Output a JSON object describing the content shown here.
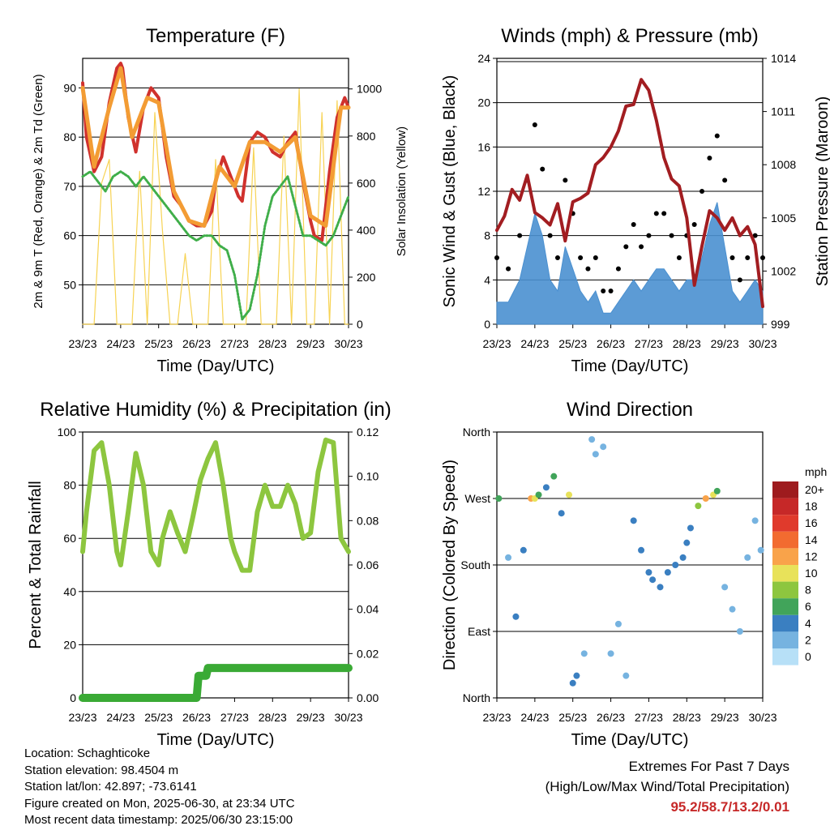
{
  "xticks": [
    "23/23",
    "24/23",
    "25/23",
    "26/23",
    "27/23",
    "28/23",
    "29/23",
    "30/23"
  ],
  "chart_data": [
    {
      "type": "line",
      "title": "Temperature (F)",
      "xlabel": "Time (Day/UTC)",
      "ylabel": "2m & 9m T (Red, Orange) & 2m Td (Green)",
      "y2label": "Solar Insolation (Yellow)",
      "ylim": [
        42,
        96
      ],
      "y2lim": [
        0,
        1130
      ],
      "yticks": [
        50,
        60,
        70,
        80,
        90
      ],
      "y2ticks": [
        0,
        200,
        400,
        600,
        800,
        1000
      ],
      "x_days": [
        0,
        7
      ],
      "series": [
        {
          "kind": "temp2m",
          "color": "#d0312d",
          "x": [
            0,
            0.1,
            0.3,
            0.5,
            0.7,
            0.9,
            1.0,
            1.05,
            1.2,
            1.4,
            1.6,
            1.8,
            2.0,
            2.2,
            2.4,
            2.6,
            2.8,
            3.0,
            3.2,
            3.4,
            3.5,
            3.7,
            3.9,
            4.1,
            4.2,
            4.4,
            4.6,
            4.8,
            5.0,
            5.2,
            5.4,
            5.6,
            5.8,
            6.0,
            6.1,
            6.3,
            6.5,
            6.7,
            6.9,
            7.0
          ],
          "values": [
            91,
            80,
            73,
            76,
            87,
            94,
            95,
            94,
            84,
            77,
            86,
            90,
            88,
            76,
            68,
            66,
            63,
            62,
            62,
            65,
            71,
            76,
            72,
            68,
            67,
            79,
            81,
            80,
            77,
            76,
            79,
            81,
            71,
            63,
            60,
            59,
            73,
            84,
            88,
            86
          ]
        },
        {
          "kind": "temp9m",
          "color": "#f39c34",
          "x": [
            0,
            0.3,
            0.7,
            1.0,
            1.3,
            1.7,
            2.0,
            2.4,
            2.8,
            3.2,
            3.6,
            4.0,
            4.4,
            4.8,
            5.2,
            5.6,
            6.0,
            6.4,
            6.8,
            7.0
          ],
          "values": [
            90,
            74,
            86,
            94,
            80,
            88,
            87,
            69,
            63,
            62,
            74,
            70,
            79,
            79,
            77,
            80,
            64,
            62,
            86,
            86
          ]
        },
        {
          "kind": "dewpoint",
          "color": "#3fae49",
          "x": [
            0,
            0.2,
            0.4,
            0.6,
            0.8,
            1.0,
            1.2,
            1.4,
            1.6,
            1.8,
            2.0,
            2.2,
            2.4,
            2.6,
            2.8,
            3.0,
            3.2,
            3.4,
            3.6,
            3.8,
            4.0,
            4.2,
            4.4,
            4.6,
            4.8,
            5.0,
            5.2,
            5.4,
            5.6,
            5.8,
            6.0,
            6.2,
            6.4,
            6.6,
            6.8,
            7.0
          ],
          "values": [
            72,
            73,
            71,
            69,
            72,
            73,
            72,
            70,
            72,
            70,
            68,
            66,
            64,
            62,
            60,
            59,
            60,
            60,
            58,
            57,
            52,
            43,
            45,
            52,
            62,
            68,
            70,
            72,
            66,
            60,
            60,
            59,
            58,
            60,
            64,
            68
          ]
        },
        {
          "kind": "solar",
          "color": "#f7d354",
          "x": [
            0,
            0.3,
            0.5,
            0.7,
            0.9,
            1.1,
            1.3,
            1.5,
            1.7,
            1.9,
            2.1,
            2.3,
            2.5,
            2.7,
            2.9,
            3.1,
            3.3,
            3.5,
            3.7,
            3.9,
            4.1,
            4.3,
            4.5,
            4.7,
            4.9,
            5.1,
            5.3,
            5.5,
            5.7,
            5.9,
            6.1,
            6.3,
            6.5,
            6.7,
            6.9,
            7.0
          ],
          "values": [
            0,
            0,
            600,
            700,
            0,
            0,
            0,
            650,
            0,
            900,
            400,
            0,
            0,
            300,
            0,
            0,
            0,
            700,
            0,
            0,
            0,
            0,
            750,
            0,
            0,
            0,
            800,
            0,
            1000,
            0,
            0,
            900,
            0,
            950,
            0,
            0
          ]
        }
      ]
    },
    {
      "type": "line",
      "title": "Winds (mph) & Pressure (mb)",
      "xlabel": "Time (Day/UTC)",
      "ylabel": "Sonic Wind & Gust (Blue, Black)",
      "y2label": "Station Pressure (Maroon)",
      "ylim": [
        0,
        24
      ],
      "y2lim": [
        999,
        1014
      ],
      "yticks": [
        0,
        4,
        8,
        12,
        16,
        20,
        24
      ],
      "y2ticks": [
        999,
        1002,
        1005,
        1008,
        1011,
        1014
      ],
      "x_days": [
        0,
        7
      ],
      "series": [
        {
          "kind": "wind",
          "color": "#4a90d0",
          "x": [
            0,
            0.3,
            0.6,
            0.8,
            1.0,
            1.2,
            1.4,
            1.6,
            1.8,
            2.0,
            2.2,
            2.4,
            2.6,
            2.8,
            3.0,
            3.2,
            3.4,
            3.6,
            3.8,
            4.0,
            4.2,
            4.4,
            4.6,
            4.8,
            5.0,
            5.2,
            5.4,
            5.6,
            5.8,
            6.0,
            6.2,
            6.4,
            6.6,
            6.8,
            7.0
          ],
          "values": [
            2,
            2,
            4,
            7,
            10,
            8,
            4,
            3,
            7,
            5,
            3,
            2,
            3,
            1,
            1,
            2,
            3,
            4,
            3,
            4,
            5,
            5,
            4,
            3,
            4,
            4,
            6,
            9,
            11,
            7,
            3,
            2,
            3,
            4,
            3
          ]
        },
        {
          "kind": "gust",
          "color": "#000000",
          "x": [
            0,
            0.3,
            0.6,
            0.8,
            1.0,
            1.2,
            1.4,
            1.6,
            1.8,
            2.0,
            2.2,
            2.4,
            2.6,
            2.8,
            3.0,
            3.2,
            3.4,
            3.6,
            3.8,
            4.0,
            4.2,
            4.4,
            4.6,
            4.8,
            5.0,
            5.2,
            5.4,
            5.6,
            5.8,
            6.0,
            6.2,
            6.4,
            6.6,
            6.8,
            7.0
          ],
          "values": [
            6,
            5,
            8,
            13,
            18,
            14,
            8,
            6,
            13,
            10,
            6,
            5,
            6,
            3,
            3,
            5,
            7,
            9,
            7,
            8,
            10,
            10,
            8,
            6,
            8,
            9,
            12,
            15,
            17,
            13,
            6,
            4,
            6,
            8,
            6
          ]
        },
        {
          "kind": "pressure",
          "color": "#a21d21",
          "x": [
            0,
            0.2,
            0.4,
            0.6,
            0.8,
            1.0,
            1.2,
            1.4,
            1.6,
            1.8,
            2.0,
            2.2,
            2.4,
            2.6,
            2.8,
            3.0,
            3.2,
            3.4,
            3.6,
            3.8,
            4.0,
            4.2,
            4.4,
            4.6,
            4.8,
            5.0,
            5.2,
            5.4,
            5.6,
            5.8,
            6.0,
            6.2,
            6.4,
            6.6,
            6.8,
            7.0
          ],
          "values": [
            1004.3,
            1005.1,
            1006.6,
            1006.0,
            1007.4,
            1005.3,
            1005.0,
            1004.6,
            1005.8,
            1003.7,
            1005.9,
            1006.1,
            1006.4,
            1008.0,
            1008.4,
            1009.0,
            1009.9,
            1011.3,
            1011.4,
            1012.8,
            1012.2,
            1010.5,
            1008.4,
            1007.2,
            1006.8,
            1005.0,
            1001.2,
            1003.4,
            1005.4,
            1005.0,
            1004.3,
            1005.0,
            1004.0,
            1004.5,
            1003.5,
            1000.0
          ]
        }
      ]
    },
    {
      "type": "line",
      "title": "Relative Humidity (%) & Precipitation (in)",
      "xlabel": "Time (Day/UTC)",
      "ylabel": "Percent & Total Rainfall",
      "ylim": [
        0,
        100
      ],
      "y2lim": [
        0,
        0.12
      ],
      "yticks": [
        0,
        20,
        40,
        60,
        80,
        100
      ],
      "y2ticks": [
        "0.00",
        "0.02",
        "0.04",
        "0.06",
        "0.08",
        "0.10",
        "0.12"
      ],
      "x_days": [
        0,
        7
      ],
      "series": [
        {
          "kind": "rh",
          "color": "#8dc63f",
          "x": [
            0,
            0.1,
            0.3,
            0.5,
            0.7,
            0.9,
            1.0,
            1.2,
            1.4,
            1.6,
            1.8,
            2.0,
            2.1,
            2.3,
            2.5,
            2.7,
            2.9,
            3.1,
            3.3,
            3.5,
            3.7,
            3.9,
            4.0,
            4.2,
            4.4,
            4.6,
            4.8,
            5.0,
            5.2,
            5.4,
            5.6,
            5.8,
            6.0,
            6.2,
            6.4,
            6.6,
            6.8,
            7.0
          ],
          "values": [
            55,
            70,
            93,
            96,
            80,
            55,
            50,
            70,
            92,
            80,
            55,
            50,
            60,
            70,
            62,
            55,
            68,
            82,
            90,
            96,
            80,
            60,
            55,
            48,
            48,
            70,
            80,
            72,
            72,
            80,
            73,
            60,
            62,
            85,
            97,
            96,
            60,
            55
          ]
        },
        {
          "kind": "precip",
          "color": "#3aaa35",
          "x": [
            0,
            1,
            2,
            3.0,
            3.05,
            3.25,
            3.3,
            4,
            5,
            6,
            7
          ],
          "values": [
            0,
            0,
            0,
            0,
            0.01,
            0.01,
            0.0135,
            0.0135,
            0.0135,
            0.0135,
            0.0135
          ]
        }
      ]
    },
    {
      "type": "scatter",
      "title": "Wind Direction",
      "xlabel": "Time (Day/UTC)",
      "ylabel": "Direction (Colored By Speed)",
      "yticks": [
        "North",
        "East",
        "South",
        "West",
        "North"
      ],
      "ylim": [
        0,
        360
      ],
      "x_days": [
        0,
        7
      ],
      "legend_title": "mph",
      "legend_labels": [
        "20+",
        "18",
        "16",
        "14",
        "12",
        "10",
        "8",
        "6",
        "4",
        "2",
        "0"
      ],
      "legend_colors": [
        "#9e1b1e",
        "#c62828",
        "#e03a2c",
        "#f26b30",
        "#f9a34a",
        "#e8e25a",
        "#8dc63f",
        "#41a45a",
        "#3a7fc1",
        "#76b3e0",
        "#b7e0f7"
      ],
      "x": [
        0.05,
        0.3,
        0.5,
        0.7,
        0.9,
        1.0,
        1.1,
        1.3,
        1.5,
        1.7,
        1.9,
        2.0,
        2.1,
        2.3,
        2.5,
        2.6,
        2.8,
        3.0,
        3.2,
        3.4,
        3.6,
        3.8,
        4.0,
        4.1,
        4.3,
        4.5,
        4.7,
        4.9,
        5.0,
        5.1,
        5.3,
        5.5,
        5.7,
        5.8,
        6.0,
        6.2,
        6.4,
        6.6,
        6.8,
        6.95
      ],
      "values": [
        270,
        190,
        110,
        200,
        270,
        270,
        275,
        285,
        300,
        250,
        275,
        20,
        30,
        60,
        350,
        330,
        340,
        60,
        100,
        30,
        240,
        200,
        170,
        160,
        150,
        170,
        180,
        190,
        210,
        230,
        260,
        270,
        275,
        280,
        150,
        120,
        90,
        190,
        240,
        200
      ],
      "speeds": [
        6,
        2,
        4,
        3,
        12,
        10,
        6,
        4,
        6,
        3,
        10,
        4,
        4,
        2,
        2,
        2,
        2,
        2,
        2,
        2,
        4,
        4,
        4,
        4,
        4,
        4,
        4,
        3,
        3,
        4,
        8,
        12,
        10,
        6,
        2,
        2,
        2,
        2,
        2,
        2
      ]
    }
  ],
  "info": {
    "location": "Location: Schaghticoke",
    "elevation": "Station elevation: 98.4504 m",
    "latlon": "Station lat/lon: 42.897; -73.6141",
    "created": "Figure created on Mon, 2025-06-30, at 23:34 UTC",
    "timestamp": "Most recent data timestamp: 2025/06/30 23:15:00"
  },
  "extremes": {
    "title": "Extremes For Past 7 Days",
    "subtitle": "(High/Low/Max Wind/Total Precipitation)",
    "values": "95.2/58.7/13.2/0.01"
  }
}
